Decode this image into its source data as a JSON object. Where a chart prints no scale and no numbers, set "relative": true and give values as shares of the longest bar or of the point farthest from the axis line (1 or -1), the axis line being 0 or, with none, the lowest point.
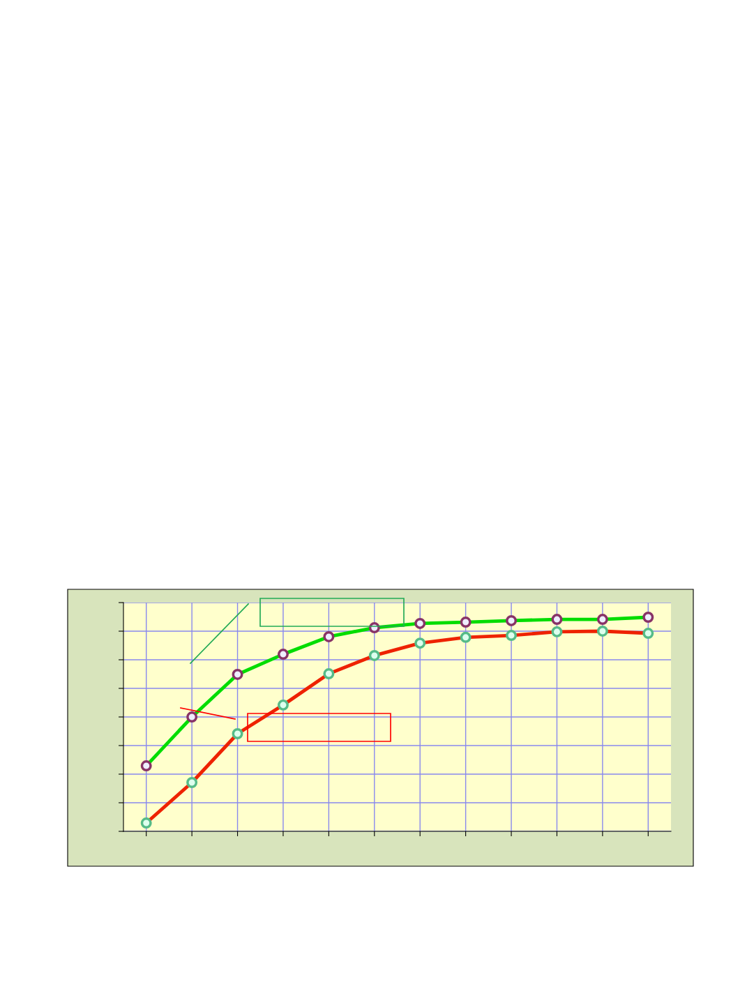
{
  "chart_data": {
    "type": "line",
    "relative": true,
    "categories": [
      null,
      null,
      null,
      null,
      null,
      null,
      null,
      null,
      null,
      null,
      null,
      null
    ],
    "series": [
      {
        "color": "#00dd00",
        "values": [
          0.306,
          0.534,
          0.733,
          0.827,
          0.909,
          0.951,
          0.971,
          0.977,
          0.984,
          0.99,
          0.99,
          1
        ]
      },
      {
        "color": "#ee2200",
        "values": [
          0.039,
          0.228,
          0.456,
          0.59,
          0.736,
          0.821,
          0.879,
          0.906,
          0.915,
          0.932,
          0.935,
          0.925
        ]
      }
    ],
    "grid": true,
    "marker": "circle",
    "line_style": "solid",
    "legend": false
  }
}
